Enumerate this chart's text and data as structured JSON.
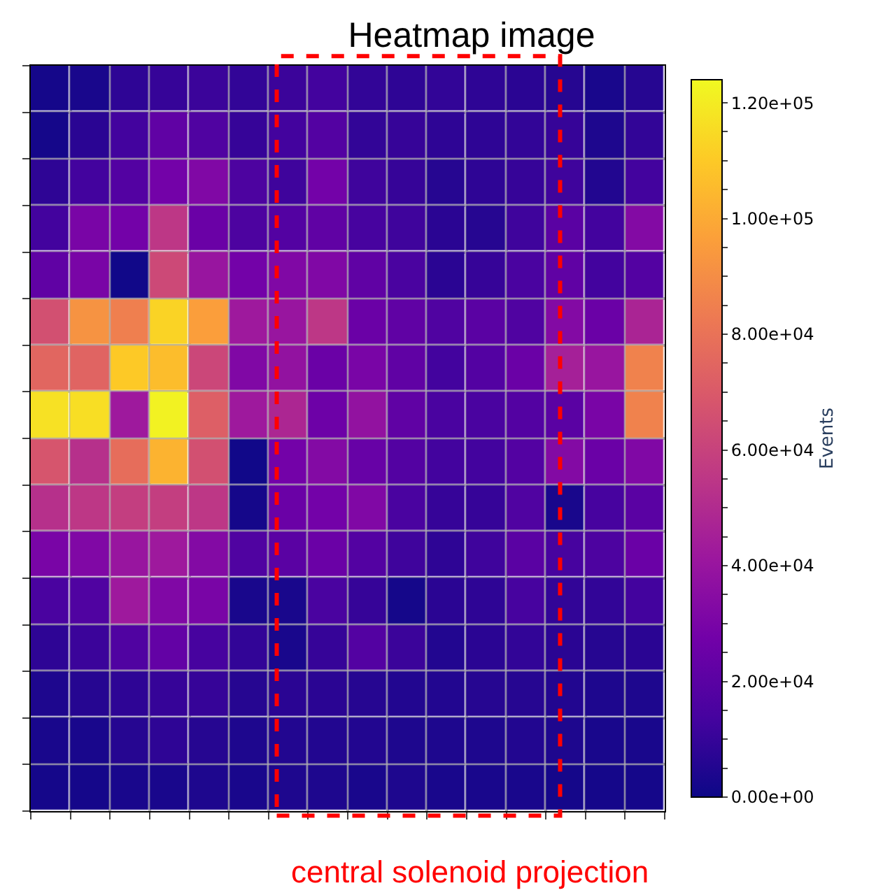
{
  "chart_data": {
    "type": "heatmap",
    "title": "Heatmap image",
    "clabel": "Events",
    "annotations": [
      "central solenoid projection"
    ],
    "categories": [
      null,
      null,
      null,
      null,
      null,
      null,
      null,
      null,
      null,
      null,
      null,
      null,
      null,
      null,
      null,
      null
    ],
    "y_categories": [
      null,
      null,
      null,
      null,
      null,
      null,
      null,
      null,
      null,
      null,
      null,
      null,
      null,
      null,
      null,
      null
    ],
    "cells": [
      [
        2000,
        3000,
        8000,
        10000,
        11000,
        9000,
        11000,
        13000,
        9000,
        8000,
        9000,
        8000,
        7000,
        6000,
        3000,
        6000
      ],
      [
        2000,
        7000,
        13000,
        22000,
        17000,
        10000,
        13000,
        18000,
        9000,
        10000,
        8000,
        8000,
        9000,
        10000,
        4000,
        9000
      ],
      [
        8000,
        13000,
        18000,
        28000,
        32000,
        16000,
        12000,
        28000,
        12000,
        10000,
        6000,
        8000,
        10000,
        12000,
        5000,
        13000
      ],
      [
        13000,
        30000,
        28000,
        55000,
        25000,
        16000,
        18000,
        22000,
        14000,
        12000,
        7000,
        6000,
        12000,
        20000,
        13000,
        33000
      ],
      [
        22000,
        30000,
        1000,
        63000,
        40000,
        28000,
        32000,
        32000,
        22000,
        15000,
        7000,
        10000,
        15000,
        22000,
        13000,
        18000
      ],
      [
        66000,
        92000,
        85000,
        113000,
        96000,
        42000,
        40000,
        55000,
        25000,
        22000,
        17000,
        20000,
        17000,
        33000,
        25000,
        47000
      ],
      [
        75000,
        74000,
        110000,
        106000,
        62000,
        32000,
        38000,
        25000,
        30000,
        22000,
        13000,
        18000,
        25000,
        45000,
        40000,
        86000
      ],
      [
        117000,
        116000,
        42000,
        122000,
        72000,
        42000,
        48000,
        26000,
        38000,
        22000,
        15000,
        15000,
        18000,
        20000,
        30000,
        86000
      ],
      [
        68000,
        52000,
        78000,
        103000,
        66000,
        1000,
        28000,
        33000,
        24000,
        18000,
        13000,
        13000,
        18000,
        33000,
        25000,
        32000
      ],
      [
        52000,
        55000,
        58000,
        58000,
        55000,
        2000,
        25000,
        28000,
        32000,
        15000,
        10000,
        10000,
        17000,
        3000,
        14000,
        20000
      ],
      [
        30000,
        32000,
        40000,
        42000,
        33000,
        17000,
        20000,
        25000,
        18000,
        12000,
        8000,
        12000,
        20000,
        14000,
        16000,
        25000
      ],
      [
        15000,
        17000,
        42000,
        32000,
        30000,
        3000,
        3000,
        15000,
        10000,
        2000,
        7000,
        8000,
        14000,
        9000,
        9000,
        13000
      ],
      [
        8000,
        11000,
        17000,
        23000,
        14000,
        9000,
        3000,
        10000,
        18000,
        11000,
        5000,
        7000,
        9000,
        7000,
        6000,
        7000
      ],
      [
        4000,
        6000,
        8000,
        10000,
        10000,
        6000,
        7000,
        7000,
        6000,
        5000,
        5000,
        6000,
        6000,
        5000,
        4000,
        4000
      ],
      [
        3000,
        3000,
        6000,
        8000,
        6000,
        4000,
        5000,
        5000,
        5000,
        4000,
        4000,
        4000,
        5000,
        4000,
        3000,
        3000
      ],
      [
        2000,
        2000,
        3000,
        3000,
        4000,
        3000,
        4000,
        4000,
        3000,
        4000,
        3000,
        3000,
        3000,
        2000,
        2000,
        2000
      ]
    ],
    "clim": [
      0,
      124000
    ],
    "cticks": [
      {
        "value": 0,
        "label": "0.00e+00"
      },
      {
        "value": 5000,
        "label": null
      },
      {
        "value": 10000,
        "label": null
      },
      {
        "value": 15000,
        "label": null
      },
      {
        "value": 20000,
        "label": "2.00e+04"
      },
      {
        "value": 25000,
        "label": null
      },
      {
        "value": 30000,
        "label": null
      },
      {
        "value": 35000,
        "label": null
      },
      {
        "value": 40000,
        "label": "4.00e+04"
      },
      {
        "value": 45000,
        "label": null
      },
      {
        "value": 50000,
        "label": null
      },
      {
        "value": 55000,
        "label": null
      },
      {
        "value": 60000,
        "label": "6.00e+04"
      },
      {
        "value": 65000,
        "label": null
      },
      {
        "value": 70000,
        "label": null
      },
      {
        "value": 75000,
        "label": null
      },
      {
        "value": 80000,
        "label": "8.00e+04"
      },
      {
        "value": 85000,
        "label": null
      },
      {
        "value": 90000,
        "label": null
      },
      {
        "value": 95000,
        "label": null
      },
      {
        "value": 100000,
        "label": "1.00e+05"
      },
      {
        "value": 105000,
        "label": null
      },
      {
        "value": 110000,
        "label": null
      },
      {
        "value": 115000,
        "label": null
      },
      {
        "value": 120000,
        "label": "1.20e+05"
      }
    ],
    "grid": true
  }
}
